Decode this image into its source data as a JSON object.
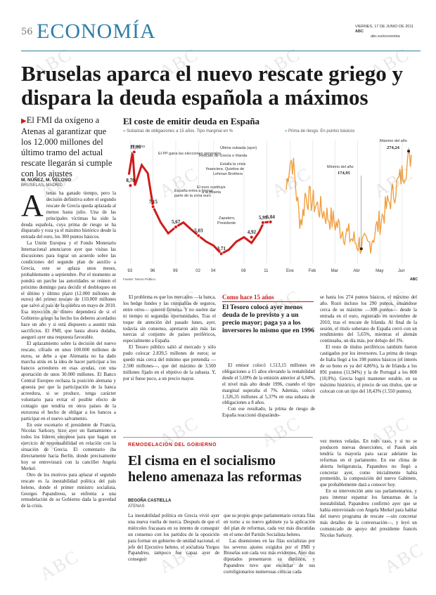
{
  "header": {
    "page_number": "56",
    "section": "ECONOMÍA",
    "date": "VIERNES, 17 DE JUNIO DE 2011",
    "paper": "ABC",
    "url": "abc.es/economia"
  },
  "headline": "Bruselas aparca el nuevo rescate griego y dispara la deuda española a máximos",
  "subhead": "El FMI da oxígeno a Atenas al garantizar que los 12.000 millones del último tramo del actual rescate llegarán si cumple con los ajustes",
  "byline": {
    "authors": "M. NÚÑEZ, M. VELOSO",
    "place": "BRUSELAS, MADRID"
  },
  "article": {
    "dropcap": "A",
    "col1": "tenas ha ganado tiempo, pero la decisión definitiva sobre el segundo rescate de Grecia queda aplazada al menos hasta julio. Una de las principales víctimas ha sido la deuda española, cuya prima de riesgo se ha disparado y roza ya el máximo histórico desde la entrada del euro, los 300 puntos básicos.",
    "col1b": "La Unión Europea y el Fondo Monetario Internacional anunciaron ayer que visitas las discusiones para lograr un acuerdo sobre las condiciones del segundo plan de auxilio a Grecia, este se aplaza unos meses, probablemente a septiembre. Por el momento se pondrá un parche las autoridades se reúnen el próximo domingo para decidir el desbloqueo en el último y último plazo (12.000 millones de euros) del primer rescate de 110.000 millones que salvó al país de la quiebra en mayo de 2010. Esa inyección de dinero dependerá de si el Gobierno griego ha hecho los deberes acordados hace un año y si está dispuesto a asumir más sacrificios. El FMI, que hasta ahora dudaba, aseguró ayer una respuesta favorable.",
    "col1c": "El aplazamiento sobre la decisión del nuevo rescate, cifrado en unos 100.000 millones de euros, se debe a que Alemania no ha dado marcha atrás en la idea de hacer participar a los bancos acreedores en esas ayudas, con una aportación de unos 30.000 millones. El Banco Central Europeo rechaza la posición alemana y apuesta por que la participación de la banca acreedora, si se produce, tenga carácter voluntario para evitar el posible efecto de contagio que tendría en otros países de la eurozona el hecho de obligar a los bancos a participar en el nuevo salvamento.",
    "col1d": "En este escenario el presidente de Francia, Nicolas Sarkozy, hizo ayer un llamamiento a todos los líderes europeos para que hagan un ejercicio de responsabilidad en relación con la situación de Grecia. El comentario iba directamente hacia Berlín, donde precisamente hoy se entrevistará con la canciller Angela Merkel.",
    "col1e": "Otro de los motivos para aplazar el segundo rescate es la inestabilidad política del país heleno, donde el primer ministro socialista, Georges Papandreou, se enfrenta a una remodelación de su Gobierno dada la gravedad de la crisis.",
    "col2b": "El problema es que los mercados —la banca, los hedge fundes y las compañías de seguros, entre otros— quieren firmeza. Y no suelen dar ni tiempo ni segundas oportunidades. Tras el toque de atención del pasado lunes, ayer, todavía sin consenso, apretaron aún más las tuercas al conjunto de países periféricos, especialmente a España.",
    "col2c": "El Tesoro público salió al mercado y sólo pudo colocar 2.839,5 millones de euros; se quedó más cerca del mínimo que pretendía —2.500 millones—, que del máximo de 3.500 millones fijado en el objetivo de la subasta. Y, por si fuese poco, a un precio mayor."
  },
  "chart": {
    "title": "El coste de emitir deuda en España",
    "left_subtitle": "Subastas de obligaciones a 15 años. Tipo marginal en %",
    "right_subtitle": "Prima de riesgo. En puntos básicos",
    "source": "Fuente: Tesoro Público",
    "brand": "ABC",
    "annotations": {
      "maximo": "Máximo",
      "ultima_subasta": "Última subasta (ayer)",
      "rescate": "Rescate de Grecia e Irlanda",
      "crisis": "Estalla la crisis financiera. Quiebra de Lehman Brothers",
      "euro_sust": "El euro sustituye a la peseta",
      "entra_formar": "España entra a formar parte de la zona euro",
      "pp_gana": "El PP gana las elecciones generales",
      "zapatero": "Zapatero, Presidente",
      "max_anio": "Máximo del año",
      "min_anio": "Mínimo del año"
    }
  },
  "chart_data": [
    {
      "type": "line",
      "title": "Subastas de obligaciones a 15 años. Tipo marginal en %",
      "x": [
        "93",
        "96",
        "99",
        "02",
        "04",
        "08",
        "11"
      ],
      "points": [
        {
          "label": "11,16",
          "year": 1993.5,
          "value": 11.16
        },
        {
          "label": "8,70",
          "year": 1993.0,
          "value": 8.7
        },
        {
          "label": "7,15",
          "year": 1996.0,
          "value": 7.15
        },
        {
          "label": "5,67",
          "year": 1999.0,
          "value": 5.67
        },
        {
          "label": "5,03",
          "year": 2002.0,
          "value": 5.03
        },
        {
          "label": "3,71",
          "year": 2005.0,
          "value": 3.71
        },
        {
          "label": "4,92",
          "year": 2009.0,
          "value": 4.92
        },
        {
          "label": "5,99",
          "year": 2010.5,
          "value": 5.99
        },
        {
          "label": "6,04",
          "year": 2011.5,
          "value": 6.04
        }
      ],
      "ylabel": "Tipo marginal (%)"
    },
    {
      "type": "line",
      "title": "Prima de riesgo. En puntos básicos",
      "x": [
        "Ene",
        "Feb",
        "Mar",
        "Abr",
        "May",
        "Jun"
      ],
      "min_label": "174,95",
      "max_label": "274,24",
      "min_value": 174.95,
      "max_value": 274.24
    }
  ],
  "box": {
    "kicker": "Como hace 15 años",
    "title": "El Tesoro colocó ayer menos deuda de lo previsto y a un precio mayor; paga ya a los inversores lo mismo que en 1996",
    "text1": "El emisor colocó 1.513,15 millones en obligaciones a 15 años elevando la rentabilidad desde el 5,69% de la emisión anterior al 6,04%, el nivel más alto desde 1996, cuando el tipo marginal superaba el 7%. Además, colocó 1.326,35 millones al 5,37% en una subasta de obligaciones a 8 años.",
    "text2": "Con ese resultado, la prima de riesgo de España reaccionó disparándo-"
  },
  "col4": {
    "text1": "se hasta los 274 puntos básicos, el máximo del año. Rozó incluso los 290 puntos, situándose cerca de su máximo —300 puntos— desde la entrada en el euro, registrado en noviembre de 2010, tras el rescate de Irlanda. Al final de la sesión, el título soberano de España cerró con un rendimiento del 5,65%, mientras el alemán continuaba, un día más, por debajo del 3%.",
    "text2": "El resto de títulos periféricos también fueron castigados por los inversores. La prima de riesgo de Italia llegó a los 198 puntos básicos (el interés de su bono es ya del 4,86%), la de Irlanda a los 891 puntos (11,94%) y la de Portugal a los 808 (10,9%). Grecia logró mantener estable, en su máximo histórico, el precio de sus títulos, que se colocan con un tipo del 18,43% (1.550 puntos)."
  },
  "article2": {
    "kicker": "REMODELACIÓN DEL GOBIERNO",
    "headline": "El cisma en el socialismo heleno amenaza las reformas",
    "author": "BEGOÑA CASTIELLA",
    "place": "ATENAS",
    "col1": "La inestabilidad política en Grecia vivió ayer una nueva vuelta de tuerca. Después de que el miércoles fracasara en su intento de conseguir un consenso con los partidos de la oposición para formar un gobierno de unidad nacional, el jefe del Ejecutivo heleno, el socialista Yorgos Papandreu, tampoco fue capaz ayer de conseguir",
    "col2": "que su propio grupo parlamentario cerrara filas en torno a su nuevo gabinete ya la aplicación del plan de reformas, cada vez más discutidas en el seno del Partido Socialista heleno.",
    "col2b": "Las disensiones en las filas socialistas por los severos ajustes exigidos por el FMI y Bruselas son cada vez más evidentes. Ayer dos diputados presentaron su dimisión, y Papandreu tuvo que escuchar de sus correligionarios numerosas críticas cada",
    "col3": "vez menos veladas. En todo caso, y si no se producen nuevas deserciones, el Pasok aún tendría la mayoría para sacar adelante las reformas en el parlamento. En ese clima de abierta beligerancia, Papandreu no llegó a concretar ayer, como inicialmente había prometido, la composición del nuevo Gabinete, que probablemente dará a conocer hoy.",
    "col3b": "En su intervención ante sus parlamentarios, y para intentar espantar los fantasmas de la inestabilidad, Papandreu confirmó ayer que se había entrevistado con Angela Merkel para hablar del nuevo programa de rescate —sin concretar más detalles de la conversación—, y leyó un comunicado de apoyo del presidente francés Nicolas Sarkozy."
  },
  "watermark": "ABC"
}
